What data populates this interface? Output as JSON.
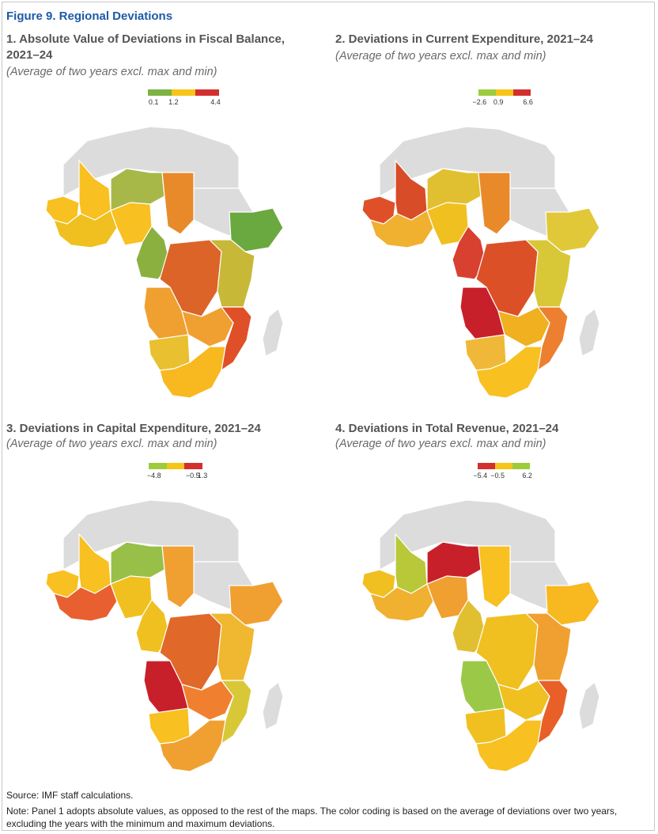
{
  "figure_title": "Figure 9. Regional Deviations",
  "source": "Source: IMF staff calculations.",
  "note": "Note: Panel 1 adopts absolute values, as opposed to the rest of the maps. The color coding is based on the average of deviations over two years, excluding the years with the minimum and maximum deviations.",
  "panels": [
    {
      "title_line1": "1. Absolute Value of Deviations in Fiscal Balance,",
      "title_line2": "2021–24",
      "subtitle": "(Average of two years excl. max and min)",
      "legend": {
        "ticks": [
          "0.1",
          "1.2",
          "4.4"
        ],
        "colors": [
          "#7cb342",
          "#f5c518",
          "#d32f2f"
        ]
      },
      "regions": {
        "westafrica": "#f0c020",
        "sahel_w": "#f8c020",
        "mali": "#f8c020",
        "niger": "#a8b848",
        "chad": "#e88a2a",
        "sudan": "#dcdcdc",
        "ethiopia": "#6aa840",
        "nigeria": "#f8c020",
        "cameroon": "#8cb040",
        "drc": "#dc6428",
        "eastafrica": "#c8b838",
        "angola": "#f0a030",
        "zambia": "#f0a030",
        "namibia": "#e8c030",
        "southafrica": "#f8b820",
        "mozambique": "#e05028",
        "madagascar": "#dcdcdc",
        "north": "#dcdcdc"
      }
    },
    {
      "title_line1": "2. Deviations in Current Expenditure, 2021–24",
      "title_line2": "",
      "subtitle": "(Average of two years excl. max and min)",
      "legend": {
        "ticks": [
          "−2.6",
          "0.9",
          "6.6"
        ],
        "colors": [
          "#9ccc3c",
          "#f5c518",
          "#d32f2f"
        ]
      },
      "regions": {
        "westafrica": "#f0b030",
        "sahel_w": "#e05028",
        "mali": "#d84c28",
        "niger": "#e0c030",
        "chad": "#e88a2a",
        "sudan": "#dcdcdc",
        "ethiopia": "#e0c838",
        "nigeria": "#f0c020",
        "cameroon": "#d84030",
        "drc": "#dc5028",
        "eastafrica": "#d8c838",
        "angola": "#c8202a",
        "zambia": "#f0b020",
        "namibia": "#f0b838",
        "southafrica": "#f8c020",
        "mozambique": "#ec8030",
        "madagascar": "#dcdcdc",
        "north": "#dcdcdc"
      }
    },
    {
      "title_line1": "3. Deviations in Capital Expenditure, 2021–24",
      "title_line2": "",
      "subtitle": "(Average of two years excl. max and min)",
      "legend": {
        "ticks": [
          "−4.8",
          "−0.5",
          "1.3"
        ],
        "colors": [
          "#9ccc3c",
          "#f5c518",
          "#d32f2f"
        ]
      },
      "regions": {
        "westafrica": "#e86030",
        "sahel_w": "#f8c020",
        "mali": "#f8c020",
        "niger": "#98c048",
        "chad": "#f0a030",
        "sudan": "#dcdcdc",
        "ethiopia": "#f0a030",
        "nigeria": "#f0c020",
        "cameroon": "#f0c020",
        "drc": "#e06828",
        "eastafrica": "#f0b830",
        "angola": "#c8202a",
        "zambia": "#f08030",
        "namibia": "#f8c020",
        "southafrica": "#f0a030",
        "mozambique": "#d8c838",
        "madagascar": "#dcdcdc",
        "north": "#dcdcdc"
      }
    },
    {
      "title_line1": "4. Deviations in Total Revenue, 2021–24",
      "title_line2": "",
      "subtitle": "(Average of two years excl. max and min)",
      "legend": {
        "ticks": [
          "−5.4",
          "−0.5",
          "6.2"
        ],
        "colors": [
          "#d32f2f",
          "#f5c518",
          "#9ccc3c"
        ]
      },
      "regions": {
        "westafrica": "#f0b030",
        "sahel_w": "#f0c020",
        "mali": "#b8c838",
        "niger": "#c8202a",
        "chad": "#f8c020",
        "sudan": "#dcdcdc",
        "ethiopia": "#f8b820",
        "nigeria": "#f0a030",
        "cameroon": "#e0c030",
        "drc": "#f0c020",
        "eastafrica": "#f0a030",
        "angola": "#9cc848",
        "zambia": "#f0c020",
        "namibia": "#f0c020",
        "southafrica": "#f8c020",
        "mozambique": "#e86028",
        "madagascar": "#dcdcdc",
        "north": "#dcdcdc"
      }
    }
  ]
}
